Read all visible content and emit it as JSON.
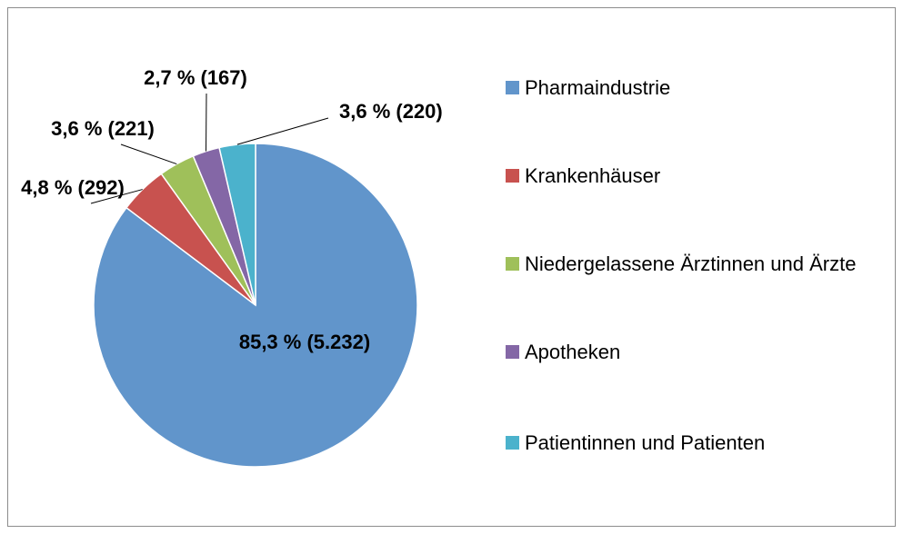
{
  "chart_data": {
    "type": "pie",
    "categories": [
      "Pharmaindustrie",
      "Krankenhäuser",
      "Niedergelassene Ärztinnen und Ärzte",
      "Apotheken",
      "Patientinnen und Patienten"
    ],
    "values": [
      85.3,
      4.8,
      3.6,
      2.7,
      3.6
    ],
    "value_labels": [
      "85,3 % (5.232)",
      "4,8 % (292)",
      "3,6 % (221)",
      "2,7 % (167)",
      "3,6 % (220)"
    ],
    "colors": [
      "#6195cb",
      "#c8524f",
      "#9fc05a",
      "#8467a6",
      "#4bb2cc"
    ],
    "legend": "right"
  }
}
